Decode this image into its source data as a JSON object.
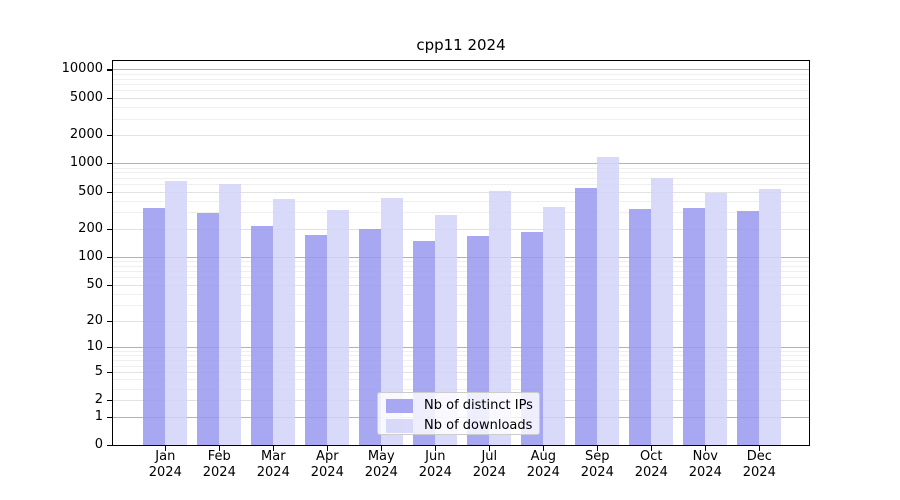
{
  "chart_data": {
    "type": "bar",
    "title": "cpp11 2024",
    "categories": [
      "Jan",
      "Feb",
      "Mar",
      "Apr",
      "May",
      "Jun",
      "Jul",
      "Aug",
      "Sep",
      "Oct",
      "Nov",
      "Dec"
    ],
    "year": "2024",
    "series": [
      {
        "name": "Nb of distinct IPs",
        "color": "rgba(153,153,240,0.85)",
        "values": [
          335,
          298,
          215,
          170,
          200,
          148,
          167,
          183,
          548,
          322,
          330,
          310
        ]
      },
      {
        "name": "Nb of downloads",
        "color": "rgba(210,210,248,0.85)",
        "values": [
          655,
          600,
          415,
          317,
          430,
          280,
          510,
          340,
          1170,
          690,
          480,
          530
        ]
      }
    ],
    "y_ticks": [
      0,
      1,
      2,
      5,
      10,
      20,
      50,
      100,
      200,
      500,
      1000,
      2000,
      5000,
      10000
    ],
    "y_scale": "log10(value+1)",
    "ylim": [
      0,
      12589
    ],
    "xlabel": "",
    "ylabel": "",
    "grid": true,
    "legend_position": "lower center inside plot",
    "colors": {
      "grid_power10": "#b3b3b3",
      "grid_major": "#e2e2e2",
      "grid_minor": "#efefef",
      "spine": "#000000",
      "background": "#ffffff"
    }
  }
}
